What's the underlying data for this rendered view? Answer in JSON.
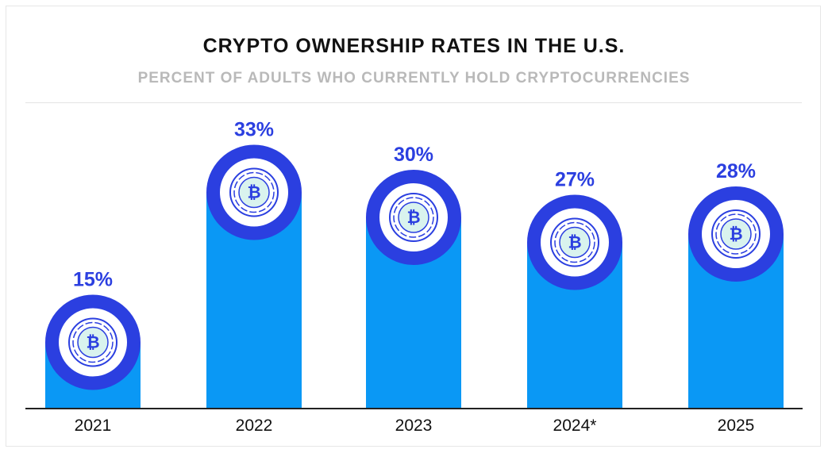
{
  "title": "CRYPTO OWNERSHIP RATES IN THE U.S.",
  "subtitle": "PERCENT OF ADULTS WHO CURRENTLY HOLD CRYPTOCURRENCIES",
  "colors": {
    "bar": "#0a98f5",
    "ring": "#2b3fe0",
    "value_label": "#2b3fe0",
    "coin_fill": "#d9f3ee",
    "axis": "#222222"
  },
  "icon": "bitcoin-coin-icon",
  "coin_symbol": "₿",
  "chart_data": {
    "type": "bar",
    "title": "CRYPTO OWNERSHIP RATES IN THE U.S.",
    "subtitle": "PERCENT OF ADULTS WHO CURRENTLY HOLD CRYPTOCURRENCIES",
    "categories": [
      "2021",
      "2022",
      "2023",
      "2024*",
      "2025"
    ],
    "values": [
      15,
      33,
      30,
      27,
      28
    ],
    "value_labels": [
      "15%",
      "33%",
      "30%",
      "27%",
      "28%"
    ],
    "xlabel": "",
    "ylabel": "",
    "grid": false,
    "legend": "none"
  }
}
